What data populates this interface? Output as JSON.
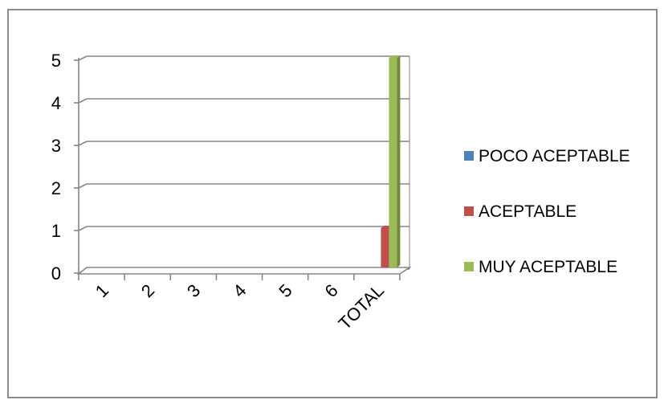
{
  "chart_data": {
    "type": "bar",
    "categories": [
      "1",
      "2",
      "3",
      "4",
      "5",
      "6",
      "TOTAL"
    ],
    "series": [
      {
        "name": "POCO ACEPTABLE",
        "color": "#4f81bd",
        "side": "#3a6494",
        "values": [
          0,
          0,
          0,
          0,
          0,
          0,
          0
        ]
      },
      {
        "name": "ACEPTABLE",
        "color": "#c0504d",
        "side": "#8f3533",
        "values": [
          0,
          0,
          0,
          0,
          0,
          0,
          1
        ]
      },
      {
        "name": "MUY ACEPTABLE",
        "color": "#9bbb59",
        "side": "#6f8a38",
        "values": [
          0,
          0,
          0,
          0,
          0,
          0,
          5
        ]
      }
    ],
    "ylim": [
      0,
      5
    ],
    "yticks": [
      "0",
      "1",
      "2",
      "3",
      "4",
      "5"
    ],
    "grid": true,
    "legend": "right",
    "style": "3d-column"
  }
}
